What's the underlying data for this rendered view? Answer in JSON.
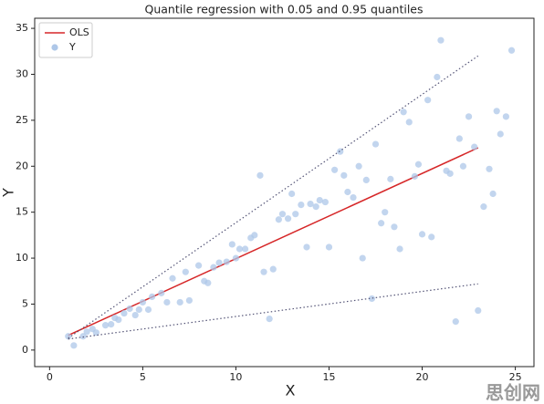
{
  "chart_data": {
    "type": "scatter",
    "title": "Quantile regression with 0.05 and 0.95 quantiles",
    "x_label": "X",
    "y_label": "Y",
    "xlim": [
      -0.8,
      26
    ],
    "ylim": [
      -1.8,
      36.1
    ],
    "xticks": [
      0,
      5,
      10,
      15,
      20,
      25
    ],
    "yticks": [
      0,
      5,
      10,
      15,
      20,
      25,
      30,
      35
    ],
    "legend": "upper left",
    "series": [
      {
        "name": "OLS",
        "kind": "line",
        "color": "#d62728",
        "x": [
          1,
          23
        ],
        "values": [
          1.6,
          22
        ]
      },
      {
        "name": "Y",
        "kind": "points",
        "color": "#aec7e8",
        "x": [
          1,
          1.3,
          1.8,
          2,
          2.3,
          2.5,
          3,
          3.3,
          3.5,
          3.7,
          4,
          4.3,
          4.6,
          4.8,
          5,
          5.3,
          5.5,
          6,
          6.3,
          6.6,
          7,
          7.3,
          7.5,
          8,
          8.3,
          8.5,
          8.8,
          9.1,
          9.5,
          9.8,
          10,
          10.2,
          10.5,
          10.8,
          11,
          11.3,
          11.5,
          11.8,
          12,
          12.3,
          12.5,
          12.8,
          13,
          13.2,
          13.5,
          13.8,
          14,
          14.3,
          14.5,
          14.8,
          15,
          15.3,
          15.6,
          15.8,
          16,
          16.3,
          16.6,
          16.8,
          17,
          17.3,
          17.5,
          17.8,
          18,
          18.3,
          18.5,
          18.8,
          19,
          19.3,
          19.6,
          19.8,
          20,
          20.3,
          20.5,
          20.8,
          21,
          21.3,
          21.5,
          21.8,
          22,
          22.2,
          22.5,
          22.8,
          23,
          23.3,
          23.6,
          23.8,
          24,
          24.2,
          24.5,
          24.8
        ],
        "values": [
          1.5,
          0.5,
          1.5,
          2,
          2.3,
          1.9,
          2.7,
          2.8,
          3.5,
          3.3,
          4,
          4.5,
          3.8,
          4.4,
          5.2,
          4.4,
          5.8,
          6.2,
          5.2,
          7.8,
          5.2,
          8.5,
          5.4,
          9.2,
          7.5,
          7.3,
          9,
          9.5,
          9.6,
          11.5,
          10,
          11,
          11,
          12.2,
          12.5,
          19,
          8.5,
          3.4,
          8.8,
          14.2,
          14.8,
          14.3,
          17,
          14.8,
          15.8,
          11.2,
          15.9,
          15.6,
          16.3,
          16.1,
          11.2,
          19.6,
          21.6,
          19,
          17.2,
          16.6,
          20,
          10,
          18.5,
          5.6,
          22.4,
          13.8,
          15,
          18.6,
          13.4,
          11,
          25.9,
          24.8,
          18.9,
          20.2,
          12.6,
          27.2,
          12.3,
          29.7,
          33.7,
          19.5,
          19.2,
          3.1,
          23,
          20,
          25.4,
          22.1,
          4.3,
          15.6,
          19.7,
          17,
          26,
          23.5,
          25.4,
          32.6
        ]
      }
    ],
    "quantile_lines": [
      {
        "color": "#555577",
        "x": [
          1,
          23
        ],
        "values": [
          1.3,
          32
        ]
      },
      {
        "color": "#555577",
        "x": [
          1,
          23
        ],
        "values": [
          1.2,
          7.2
        ]
      }
    ],
    "watermark": "思创网"
  }
}
